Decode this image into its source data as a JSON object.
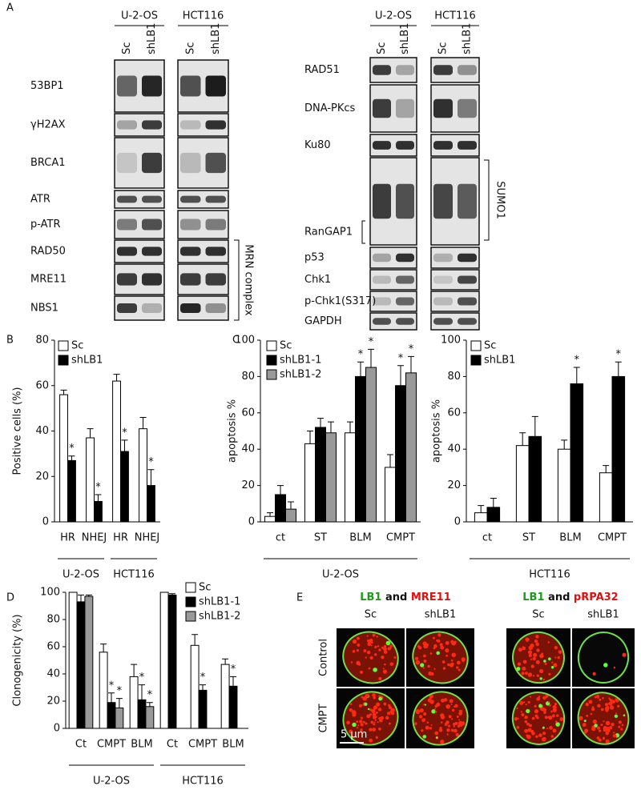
{
  "panel_a": {
    "label": "A",
    "left_blot": {
      "cell_lines": [
        "U-2-OS",
        "HCT116"
      ],
      "lanes": [
        "Sc",
        "shLB1"
      ],
      "proteins": [
        "53BP1",
        "γH2AX",
        "BRCA1",
        "ATR",
        "p-ATR",
        "RAD50",
        "MRE11",
        "NBS1"
      ],
      "bracket_label": "MRN complex"
    },
    "right_blot": {
      "cell_lines": [
        "U-2-OS",
        "HCT116"
      ],
      "lanes": [
        "Sc",
        "shLB1"
      ],
      "proteins": [
        "RAD51",
        "DNA-PKcs",
        "Ku80",
        "RanGAP1",
        "p53",
        "Chk1",
        "p-Chk1(S317)",
        "GAPDH"
      ],
      "bracket_label": "SUMO1"
    }
  },
  "chart_data": [
    {
      "type": "bar",
      "panel_label": "B",
      "ylabel": "Positive cells (%)",
      "categories": [
        "HR",
        "NHEJ",
        "HR",
        "NHEJ"
      ],
      "category_groups": [
        "U-2-OS",
        "U-2-OS",
        "HCT116",
        "HCT116"
      ],
      "ylim": [
        0,
        80
      ],
      "yticks": [
        0,
        20,
        40,
        60,
        80
      ],
      "significance_label": "*",
      "series": [
        {
          "name": "Sc",
          "color": "#ffffff",
          "values": [
            56,
            37,
            62,
            41
          ],
          "errors": [
            2,
            4,
            3,
            5
          ],
          "significant": [
            false,
            false,
            false,
            false
          ]
        },
        {
          "name": "shLB1",
          "color": "#000000",
          "values": [
            27,
            9,
            31,
            16
          ],
          "errors": [
            2,
            3,
            5,
            7
          ],
          "significant": [
            true,
            true,
            true,
            true
          ]
        }
      ]
    },
    {
      "type": "bar",
      "panel_label": "C",
      "ylabel": "apoptosis %",
      "categories": [
        "ct",
        "ST",
        "BLM",
        "CMPT"
      ],
      "category_groups": [
        "U-2-OS",
        "U-2-OS",
        "U-2-OS",
        "U-2-OS"
      ],
      "ylim": [
        0,
        100
      ],
      "yticks": [
        0,
        20,
        40,
        60,
        80,
        100
      ],
      "significance_label": "*",
      "series": [
        {
          "name": "Sc",
          "color": "#ffffff",
          "values": [
            3,
            43,
            49,
            30
          ],
          "errors": [
            2,
            7,
            6,
            7
          ],
          "significant": [
            false,
            false,
            false,
            false
          ]
        },
        {
          "name": "shLB1-1",
          "color": "#000000",
          "values": [
            15,
            52,
            80,
            75
          ],
          "errors": [
            5,
            5,
            8,
            11
          ],
          "significant": [
            false,
            false,
            true,
            true
          ]
        },
        {
          "name": "shLB1-2",
          "color": "#999999",
          "values": [
            7,
            49,
            85,
            82
          ],
          "errors": [
            4,
            6,
            10,
            9
          ],
          "significant": [
            false,
            false,
            true,
            true
          ]
        }
      ]
    },
    {
      "type": "bar",
      "ylabel": "apoptosis %",
      "categories": [
        "ct",
        "ST",
        "BLM",
        "CMPT"
      ],
      "category_groups": [
        "HCT116",
        "HCT116",
        "HCT116",
        "HCT116"
      ],
      "ylim": [
        0,
        100
      ],
      "yticks": [
        0,
        20,
        40,
        60,
        80,
        100
      ],
      "significance_label": "*",
      "series": [
        {
          "name": "Sc",
          "color": "#ffffff",
          "values": [
            5,
            42,
            40,
            27
          ],
          "errors": [
            4,
            7,
            5,
            4
          ],
          "significant": [
            false,
            false,
            false,
            false
          ]
        },
        {
          "name": "shLB1",
          "color": "#000000",
          "values": [
            8,
            47,
            76,
            80
          ],
          "errors": [
            5,
            11,
            9,
            8
          ],
          "significant": [
            false,
            false,
            true,
            true
          ]
        }
      ]
    },
    {
      "type": "bar",
      "panel_label": "D",
      "ylabel": "Clonogenicity (%)",
      "categories": [
        "Ct",
        "CMPT",
        "BLM",
        "Ct",
        "CMPT",
        "BLM"
      ],
      "category_groups": [
        "U-2-OS",
        "U-2-OS",
        "U-2-OS",
        "HCT116",
        "HCT116",
        "HCT116"
      ],
      "ylim": [
        0,
        100
      ],
      "yticks": [
        0,
        20,
        40,
        60,
        80,
        100
      ],
      "significance_label": "*",
      "series": [
        {
          "name": "Sc",
          "color": "#ffffff",
          "values": [
            100,
            56,
            38,
            100,
            61,
            47
          ],
          "errors": [
            0,
            6,
            9,
            0,
            8,
            4
          ],
          "significant": [
            false,
            false,
            false,
            false,
            false,
            false
          ]
        },
        {
          "name": "shLB1-1",
          "color": "#000000",
          "values": [
            93,
            19,
            21,
            98,
            28,
            31
          ],
          "errors": [
            5,
            7,
            11,
            1,
            4,
            7
          ],
          "significant": [
            false,
            true,
            true,
            false,
            true,
            true
          ]
        },
        {
          "name": "shLB1-2",
          "color": "#999999",
          "values": [
            97,
            15,
            16,
            null,
            null,
            null
          ],
          "errors": [
            1,
            7,
            3,
            null,
            null,
            null
          ],
          "significant": [
            false,
            true,
            true,
            false,
            false,
            false
          ]
        }
      ]
    }
  ],
  "panel_e": {
    "label": "E",
    "stains": [
      {
        "lamin": "LB1",
        "joiner": "and",
        "target": "MRE11"
      },
      {
        "lamin": "LB1",
        "joiner": "and",
        "target": "pRPA32"
      }
    ],
    "conditions": [
      "Sc",
      "shLB1"
    ],
    "treatments": [
      "Control",
      "CMPT"
    ],
    "scale_bar": "5 μm"
  }
}
